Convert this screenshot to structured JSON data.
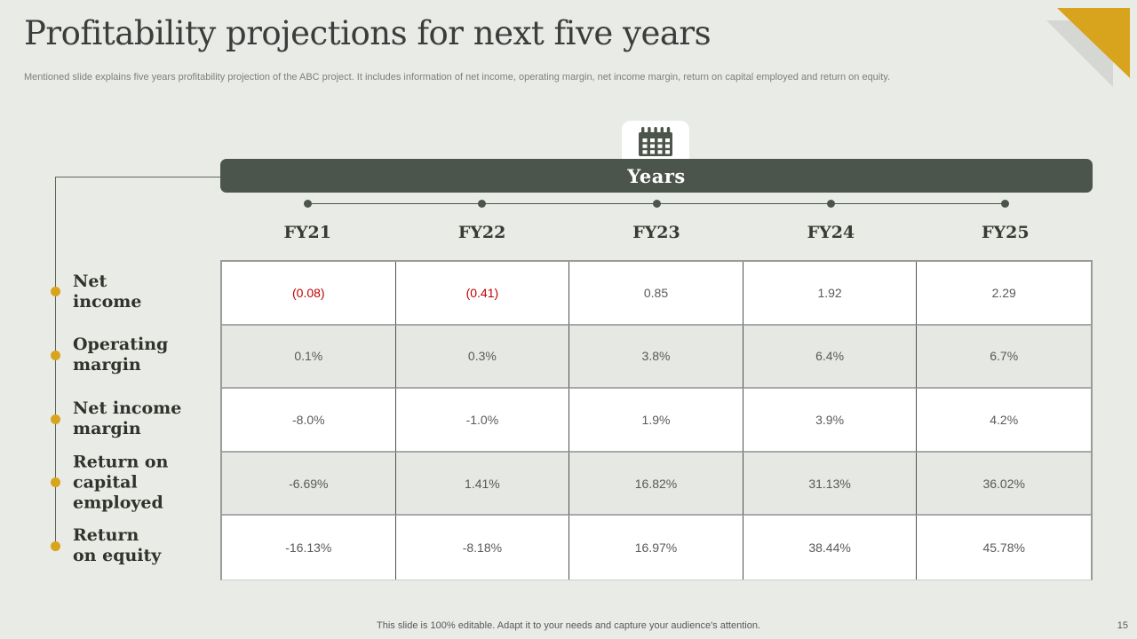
{
  "slide": {
    "title": "Profitability projections for next five years",
    "subtitle": "Mentioned slide explains five years profitability projection of the ABC project. It includes information of net income, operating margin, net income margin, return on capital employed and return on equity.",
    "footer": "This slide is 100% editable.  Adapt it to your needs and capture your audience's attention.",
    "page_number": "15"
  },
  "timeline": {
    "header": "Years",
    "icon": "calendar-icon",
    "years": [
      "FY21",
      "FY22",
      "FY23",
      "FY24",
      "FY25"
    ]
  },
  "chart_data": {
    "type": "table",
    "title": "Years",
    "columns": [
      "FY21",
      "FY22",
      "FY23",
      "FY24",
      "FY25"
    ],
    "rows": [
      {
        "label": "Net income",
        "label_lines": [
          "Net",
          "income"
        ],
        "values": [
          "(0.08)",
          "(0.41)",
          "0.85",
          "1.92",
          "2.29"
        ],
        "numeric": [
          -0.08,
          -0.41,
          0.85,
          1.92,
          2.29
        ],
        "red_flags": [
          true,
          true,
          false,
          false,
          false
        ]
      },
      {
        "label": "Operating margin",
        "label_lines": [
          "Operating",
          "margin"
        ],
        "values": [
          "0.1%",
          "0.3%",
          "3.8%",
          "6.4%",
          "6.7%"
        ],
        "numeric": [
          0.1,
          0.3,
          3.8,
          6.4,
          6.7
        ],
        "red_flags": [
          false,
          false,
          false,
          false,
          false
        ]
      },
      {
        "label": "Net income margin",
        "label_lines": [
          "Net income",
          "margin"
        ],
        "values": [
          "-8.0%",
          "-1.0%",
          "1.9%",
          "3.9%",
          "4.2%"
        ],
        "numeric": [
          -8.0,
          -1.0,
          1.9,
          3.9,
          4.2
        ],
        "red_flags": [
          false,
          false,
          false,
          false,
          false
        ]
      },
      {
        "label": "Return on capital employed",
        "label_lines": [
          "Return on",
          "capital employed"
        ],
        "values": [
          "-6.69%",
          "1.41%",
          "16.82%",
          "31.13%",
          "36.02%"
        ],
        "numeric": [
          -6.69,
          1.41,
          16.82,
          31.13,
          36.02
        ],
        "red_flags": [
          false,
          false,
          false,
          false,
          false
        ]
      },
      {
        "label": "Return on equity",
        "label_lines": [
          "Return",
          "on equity"
        ],
        "values": [
          "-16.13%",
          "-8.18%",
          "16.97%",
          "38.44%",
          "45.78%"
        ],
        "numeric": [
          -16.13,
          -8.18,
          16.97,
          38.44,
          45.78
        ],
        "red_flags": [
          false,
          false,
          false,
          false,
          false
        ]
      }
    ]
  },
  "colors": {
    "background": "#e9ebe7",
    "dark_olive": "#4c554b",
    "gold_accent": "#d9a41d",
    "gray_triangle": "#d5d7d3",
    "negative_red": "#c00000",
    "cell_text": "#595959",
    "shaded_row": "#e6e8e3"
  }
}
